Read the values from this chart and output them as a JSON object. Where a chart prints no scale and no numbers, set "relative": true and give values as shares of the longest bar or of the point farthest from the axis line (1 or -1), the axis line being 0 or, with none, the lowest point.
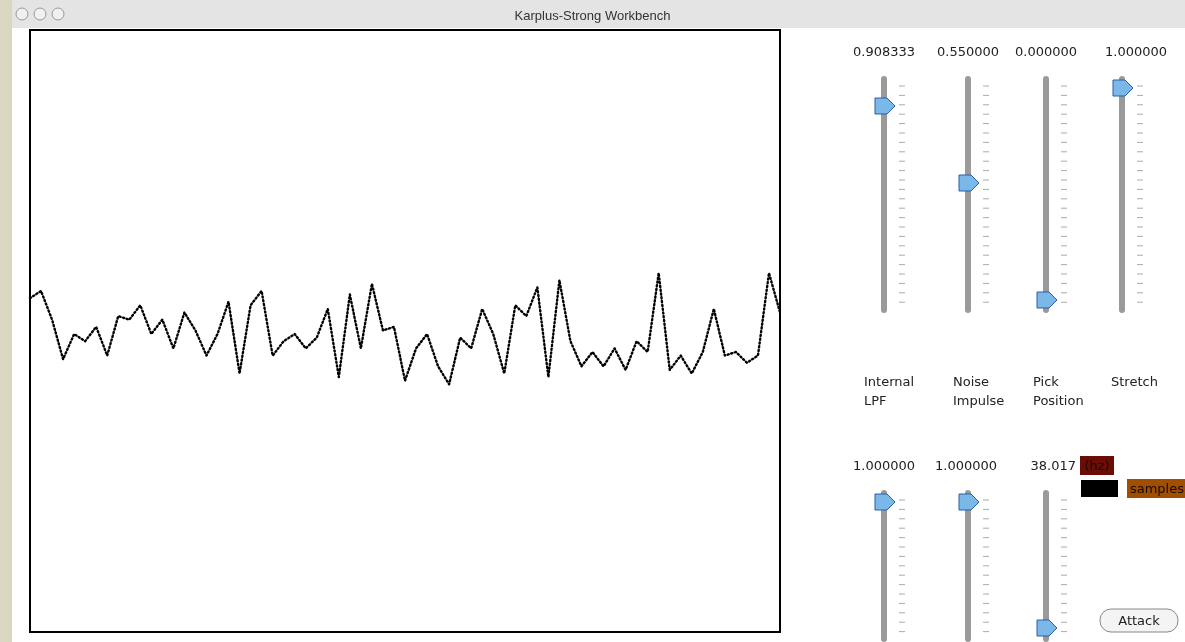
{
  "chart_data": [
    {
      "type": "line",
      "title": "Karplus-Strong Workbench",
      "relative": true,
      "line_style": "dotted",
      "marker": "none",
      "categories": [
        null,
        null,
        null,
        null,
        null,
        null,
        null,
        null,
        null,
        null,
        null,
        null,
        null,
        null,
        null,
        null,
        null,
        null,
        null,
        null,
        null,
        null,
        null,
        null,
        null,
        null,
        null,
        null,
        null,
        null,
        null,
        null,
        null,
        null,
        null,
        null,
        null,
        null,
        null,
        null,
        null,
        null,
        null,
        null,
        null,
        null,
        null,
        null,
        null,
        null,
        null,
        null,
        null,
        null,
        null,
        null,
        null,
        null,
        null,
        null,
        null,
        null,
        null,
        null,
        null,
        null,
        null,
        null,
        null
      ],
      "series": [
        {
          "color": "#000000",
          "values": [
            0.93,
            0.95,
            0.87,
            0.76,
            0.83,
            0.81,
            0.85,
            0.77,
            0.88,
            0.87,
            0.91,
            0.83,
            0.87,
            0.79,
            0.89,
            0.84,
            0.77,
            0.83,
            0.92,
            0.72,
            0.91,
            0.95,
            0.77,
            0.81,
            0.83,
            0.79,
            0.82,
            0.9,
            0.71,
            0.94,
            0.79,
            0.97,
            0.84,
            0.85,
            0.7,
            0.79,
            0.83,
            0.74,
            0.69,
            0.82,
            0.79,
            0.9,
            0.83,
            0.72,
            0.91,
            0.88,
            0.96,
            0.71,
            0.98,
            0.81,
            0.74,
            0.78,
            0.74,
            0.79,
            0.73,
            0.81,
            0.78,
            1,
            0.73,
            0.77,
            0.72,
            0.78,
            0.9,
            0.77,
            0.78,
            0.75,
            0.77,
            1,
            0.89
          ]
        }
      ]
    },
    {
      "type": "other",
      "annotations": [
        "0.908333",
        "0.550000",
        "0.000000",
        "1.000000",
        "Internal\nLPF",
        "Noise\nImpulse",
        "Pick\nPosition",
        "Stretch",
        "1.000000",
        "1.000000",
        "38.017",
        "(hz)",
        "samples",
        "Attack"
      ]
    }
  ]
}
